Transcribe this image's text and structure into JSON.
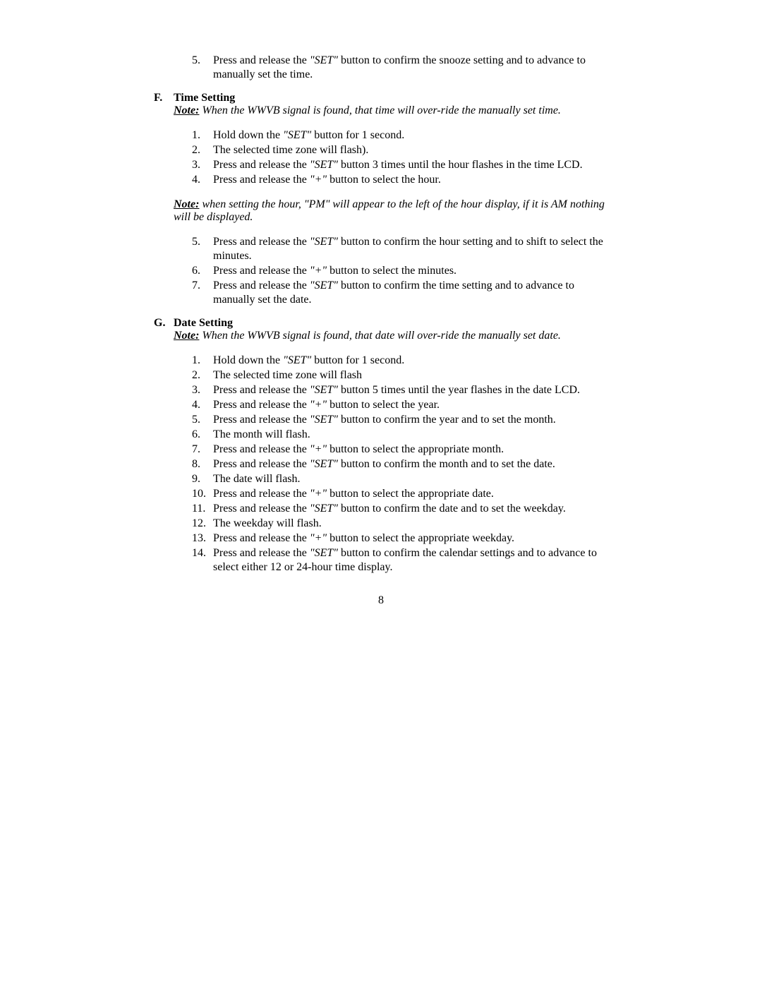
{
  "intro_steps": [
    {
      "num": "5.",
      "parts": [
        {
          "t": "Press and release the "
        },
        {
          "t": "\"SET\"",
          "q": true
        },
        {
          "t": " button to confirm the snooze setting and to advance to manually set the time."
        }
      ]
    }
  ],
  "section_f": {
    "letter": "F.",
    "title": "Time Setting",
    "note_label": "Note:",
    "note_text": " When the WWVB signal is found, that time will over-ride the manually set time.",
    "steps1": [
      {
        "num": "1.",
        "parts": [
          {
            "t": "Hold down the "
          },
          {
            "t": "\"SET\"",
            "q": true
          },
          {
            "t": " button for 1 second."
          }
        ]
      },
      {
        "num": "2.",
        "parts": [
          {
            "t": "The selected time zone will flash)."
          }
        ]
      },
      {
        "num": "3.",
        "parts": [
          {
            "t": "Press and release the "
          },
          {
            "t": "\"SET\"",
            "q": true
          },
          {
            "t": " button 3 times until the hour flashes in the time LCD."
          }
        ]
      },
      {
        "num": "4.",
        "parts": [
          {
            "t": "Press and release the "
          },
          {
            "t": "\"+\"",
            "q": true
          },
          {
            "t": " button to select the hour."
          }
        ]
      }
    ],
    "note2_label": "Note:",
    "note2_text": " when setting the hour, \"PM\" will appear to the left of the hour display, if it is AM nothing will be displayed.",
    "steps2": [
      {
        "num": "5.",
        "parts": [
          {
            "t": "Press and release the "
          },
          {
            "t": "\"SET\"",
            "q": true
          },
          {
            "t": " button to confirm the hour setting and to shift to select the minutes."
          }
        ]
      },
      {
        "num": "6.",
        "parts": [
          {
            "t": "Press and release the "
          },
          {
            "t": "\"+\"",
            "q": true
          },
          {
            "t": " button to select the minutes."
          }
        ]
      },
      {
        "num": "7.",
        "parts": [
          {
            "t": "Press and release the "
          },
          {
            "t": "\"SET\"",
            "q": true
          },
          {
            "t": " button to confirm the time setting and to advance to manually set the date."
          }
        ]
      }
    ]
  },
  "section_g": {
    "letter": "G.",
    "title": "Date Setting",
    "note_label": "Note:",
    "note_text": " When the WWVB signal is found, that date will over-ride the manually set date.",
    "steps": [
      {
        "num": "1.",
        "parts": [
          {
            "t": "Hold down the "
          },
          {
            "t": "\"SET\"",
            "q": true
          },
          {
            "t": " button for 1 second."
          }
        ]
      },
      {
        "num": "2.",
        "parts": [
          {
            "t": "The selected time zone will flash"
          }
        ]
      },
      {
        "num": "3.",
        "parts": [
          {
            "t": "Press and release the "
          },
          {
            "t": "\"SET\"",
            "q": true
          },
          {
            "t": " button 5 times until the year flashes in the date LCD."
          }
        ]
      },
      {
        "num": "4.",
        "parts": [
          {
            "t": "Press and release the "
          },
          {
            "t": "\"+\"",
            "q": true
          },
          {
            "t": " button to select the year."
          }
        ]
      },
      {
        "num": "5.",
        "parts": [
          {
            "t": "Press and release the "
          },
          {
            "t": "\"SET\"",
            "q": true
          },
          {
            "t": " button to confirm the year and to set the month."
          }
        ]
      },
      {
        "num": "6.",
        "parts": [
          {
            "t": "The month will flash."
          }
        ]
      },
      {
        "num": "7.",
        "parts": [
          {
            "t": "Press and release the "
          },
          {
            "t": "\"+\"",
            "q": true
          },
          {
            "t": " button to select the appropriate month."
          }
        ]
      },
      {
        "num": "8.",
        "parts": [
          {
            "t": "Press and release the "
          },
          {
            "t": "\"SET\"",
            "q": true
          },
          {
            "t": " button to confirm the month and to set the date."
          }
        ]
      },
      {
        "num": "9.",
        "parts": [
          {
            "t": "The date will flash."
          }
        ]
      },
      {
        "num": "10.",
        "parts": [
          {
            "t": "Press and release the "
          },
          {
            "t": "\"+\"",
            "q": true
          },
          {
            "t": " button to select the appropriate date."
          }
        ]
      },
      {
        "num": "11.",
        "parts": [
          {
            "t": "Press and release the "
          },
          {
            "t": "\"SET\"",
            "q": true
          },
          {
            "t": " button to confirm the date and to set the weekday."
          }
        ]
      },
      {
        "num": "12.",
        "parts": [
          {
            "t": "The weekday will flash."
          }
        ]
      },
      {
        "num": "13.",
        "parts": [
          {
            "t": "Press and release the "
          },
          {
            "t": "\"+\"",
            "q": true
          },
          {
            "t": " button to select the appropriate weekday."
          }
        ]
      },
      {
        "num": "14.",
        "parts": [
          {
            "t": "Press and release the "
          },
          {
            "t": "\"SET\"",
            "q": true
          },
          {
            "t": " button to confirm the calendar settings and to advance to select either 12 or 24-hour time display."
          }
        ]
      }
    ]
  },
  "page_number": "8"
}
